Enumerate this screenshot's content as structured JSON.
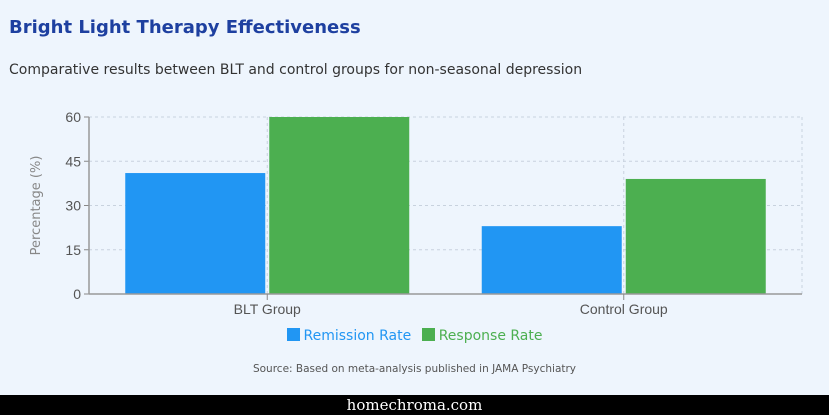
{
  "header": {
    "title": "Bright Light Therapy Effectiveness",
    "subtitle": "Comparative results between BLT and control groups for non-seasonal depression"
  },
  "chart_data": {
    "type": "bar",
    "categories": [
      "BLT Group",
      "Control Group"
    ],
    "series": [
      {
        "name": "Remission Rate",
        "values": [
          41,
          23
        ],
        "color": "#2196f3"
      },
      {
        "name": "Response Rate",
        "values": [
          60,
          39
        ],
        "color": "#4caf50"
      }
    ],
    "ylabel": "Percentage (%)",
    "xlabel": "",
    "ylim": [
      0,
      60
    ],
    "yticks": [
      0,
      15,
      30,
      45,
      60
    ],
    "grid": true,
    "legend_position": "bottom"
  },
  "source": "Source: Based on meta-analysis published in JAMA Psychiatry",
  "footer": "homechroma.com"
}
